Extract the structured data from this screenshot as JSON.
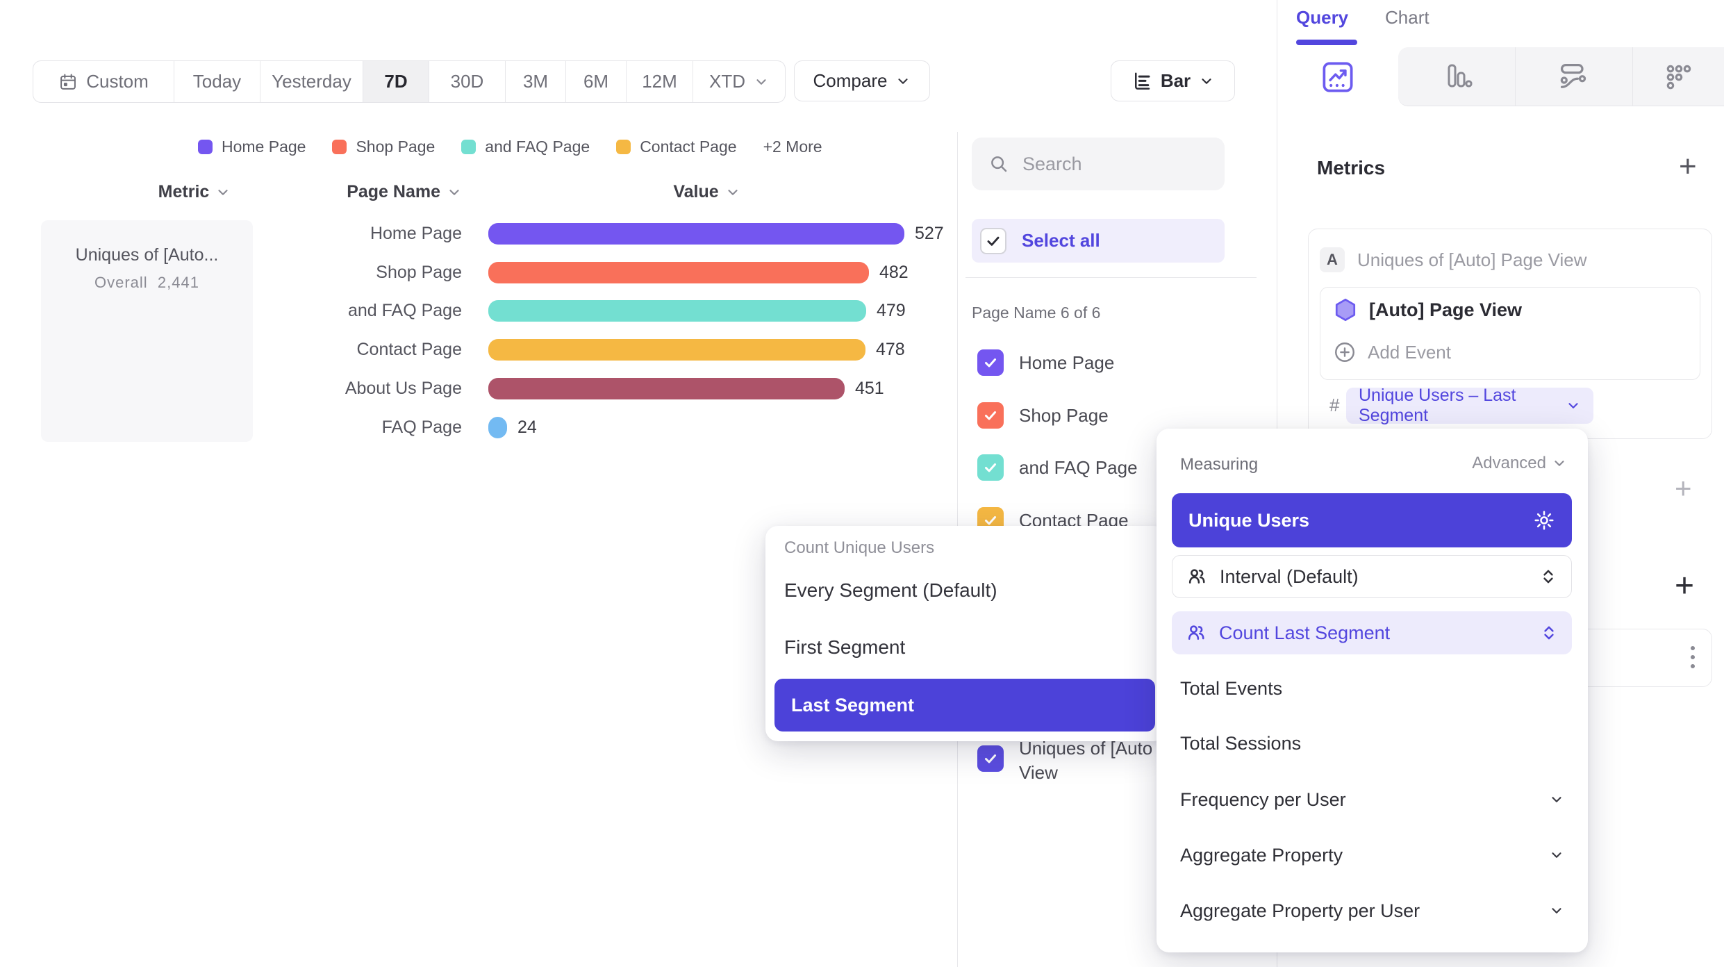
{
  "toolbar": {
    "date_ranges": [
      "Custom",
      "Today",
      "Yesterday",
      "7D",
      "30D",
      "3M",
      "6M",
      "12M",
      "XTD"
    ],
    "selected_range": "7D",
    "compare_label": "Compare",
    "chart_type_label": "Bar"
  },
  "legend": {
    "items": [
      {
        "label": "Home Page",
        "color": "#7456F0"
      },
      {
        "label": "Shop Page",
        "color": "#F9705A"
      },
      {
        "label": "and FAQ Page",
        "color": "#73DFD1"
      },
      {
        "label": "Contact Page",
        "color": "#F5B843"
      }
    ],
    "more_label": "+2 More"
  },
  "table": {
    "headers": {
      "metric": "Metric",
      "page_name": "Page Name",
      "value": "Value"
    },
    "metric_card": {
      "title": "Uniques of [Auto...",
      "overall_label": "Overall",
      "overall_value": "2,441"
    }
  },
  "chart_data": {
    "type": "bar",
    "orientation": "horizontal",
    "title": "",
    "xlabel": "Value",
    "ylabel": "Page Name",
    "categories": [
      "Home Page",
      "Shop Page",
      "and FAQ Page",
      "Contact Page",
      "About Us Page",
      "FAQ Page"
    ],
    "values": [
      527,
      482,
      479,
      478,
      451,
      24
    ],
    "value_labels": [
      "527",
      "482",
      "479",
      "478",
      "451",
      "24"
    ],
    "colors": [
      "#7456F0",
      "#F9705A",
      "#73DFD1",
      "#F5B843",
      "#AD5369",
      "#73BAF2"
    ],
    "xlim": [
      0,
      560
    ],
    "grid": false,
    "legend_position": "top",
    "overall_total": "2,441"
  },
  "filter_panel": {
    "search_placeholder": "Search",
    "select_all_label": "Select all",
    "group_label": "Page Name 6 of 6",
    "items": [
      {
        "label": "Home Page",
        "color": "#7456F0"
      },
      {
        "label": "Shop Page",
        "color": "#F9705A"
      },
      {
        "label": "and FAQ Page",
        "color": "#73DFD1"
      },
      {
        "label": "Contact Page",
        "color": "#F5B843"
      }
    ],
    "overflow_item": {
      "line1": "Uniques of [Auto",
      "line2": "View",
      "color": "#5B4DE0"
    }
  },
  "sidebar": {
    "tabs": [
      {
        "label": "Query"
      },
      {
        "label": "Chart"
      }
    ],
    "active_tab": "Query",
    "metrics_title": "Metrics",
    "add_metric_label": "+",
    "metric": {
      "badge": "A",
      "label": "Uniques of [Auto] Page View",
      "event_label": "[Auto] Page View",
      "add_event_label": "Add Event",
      "hash": "#",
      "measure_pill": "Unique Users – Last Segment"
    },
    "plus_light": "+",
    "plus_dark": "+"
  },
  "measuring_menu": {
    "title": "Measuring",
    "advanced_label": "Advanced",
    "selected_option": "Unique Users",
    "sub_rows": [
      {
        "label": "Interval (Default)"
      },
      {
        "label": "Count Last Segment"
      }
    ],
    "options": [
      {
        "label": "Total Events",
        "expandable": false
      },
      {
        "label": "Total Sessions",
        "expandable": false
      },
      {
        "label": "Frequency per User",
        "expandable": true
      },
      {
        "label": "Aggregate Property",
        "expandable": true
      },
      {
        "label": "Aggregate Property per User",
        "expandable": true
      }
    ]
  },
  "segment_menu": {
    "title": "Count Unique Users",
    "options": [
      "Every Segment (Default)",
      "First Segment",
      "Last Segment"
    ],
    "selected": "Last Segment"
  },
  "colors": {
    "accent": "#5246DE",
    "accent_button": "#4C42D9",
    "accent_bg": "#EDEBFC"
  }
}
